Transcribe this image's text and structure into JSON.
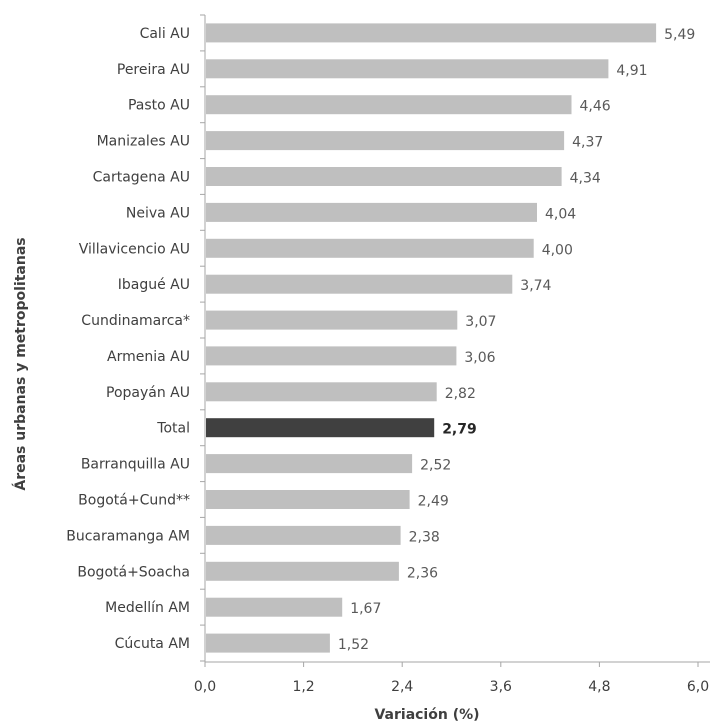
{
  "chart_data": {
    "type": "bar",
    "orientation": "horizontal",
    "categories": [
      "Cali AU",
      "Pereira AU",
      "Pasto AU",
      "Manizales AU",
      "Cartagena AU",
      "Neiva AU",
      "Villavicencio AU",
      "Ibagué AU",
      "Cundinamarca*",
      "Armenia AU",
      "Popayán AU",
      "Total",
      "Barranquilla AU",
      "Bogotá+Cund**",
      "Bucaramanga AM",
      "Bogotá+Soacha",
      "Medellín AM",
      "Cúcuta AM"
    ],
    "values": [
      5.49,
      4.91,
      4.46,
      4.37,
      4.34,
      4.04,
      4.0,
      3.74,
      3.07,
      3.06,
      2.82,
      2.79,
      2.52,
      2.49,
      2.38,
      2.36,
      1.67,
      1.52
    ],
    "value_labels": [
      "5,49",
      "4,91",
      "4,46",
      "4,37",
      "4,34",
      "4,04",
      "4,00",
      "3,74",
      "3,07",
      "3,06",
      "2,82",
      "2,79",
      "2,52",
      "2,49",
      "2,38",
      "2,36",
      "1,67",
      "1,52"
    ],
    "highlight_category": "Total",
    "xlabel": "Variación (%)",
    "ylabel": "Áreas urbanas y metropolitanas",
    "xlim": [
      0,
      6
    ],
    "xticks": [
      0,
      1.2,
      2.4,
      3.6,
      4.8,
      6.0
    ],
    "xtick_labels": [
      "0,0",
      "1,2",
      "2,4",
      "3,6",
      "4,8",
      "6,0"
    ],
    "grid": false,
    "colors": {
      "bar": "#bfbfbf",
      "highlight": "#404040",
      "axis": "#a6a6a6"
    }
  }
}
